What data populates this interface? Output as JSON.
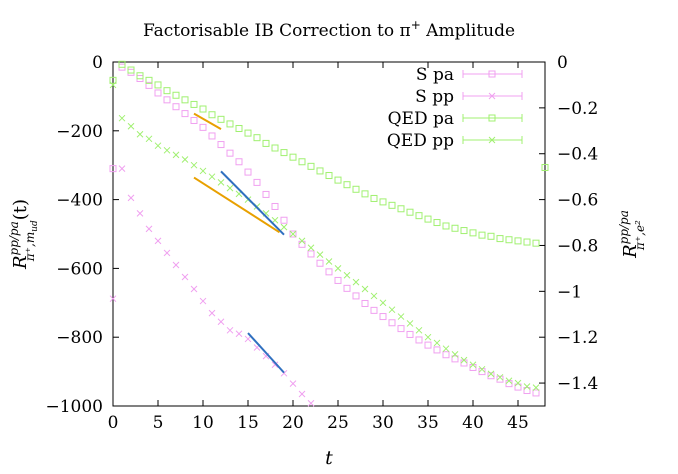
{
  "chart_data": {
    "type": "scatter",
    "title": "Factorisable IB Correction to π⁺ Amplitude",
    "title_parts": {
      "main": "Factorisable IB Correction to π",
      "sup": "+",
      "tail": " Amplitude"
    },
    "xlabel": "t",
    "ylabel": {
      "base": "R",
      "sup": "pp/pa",
      "sub": "π⁺,m",
      "subsub": "ud",
      "tail": "(t)"
    },
    "y2label": {
      "base": "R",
      "sup": "pp/pa",
      "sub": "π⁺,e²"
    },
    "xlim": [
      0,
      48
    ],
    "ylim": [
      -1000,
      0
    ],
    "y2lim": [
      -1.5,
      0
    ],
    "x_ticks": [
      0,
      5,
      10,
      15,
      20,
      25,
      30,
      35,
      40,
      45
    ],
    "y_ticks": [
      0,
      -200,
      -400,
      -600,
      -800,
      -1000
    ],
    "y_tick_labels": [
      "0",
      "−200",
      "−400",
      "−600",
      "−800",
      "−1000"
    ],
    "y2_ticks": [
      0,
      -0.2,
      -0.4,
      -0.6,
      -0.8,
      -1,
      -1.2,
      -1.4
    ],
    "y2_tick_labels": [
      "0",
      "−0.2",
      "−0.4",
      "−0.6",
      "−0.8",
      "−1",
      "−1.2",
      "−1.4"
    ],
    "legend_position": "top-right",
    "series": [
      {
        "name": "S pa",
        "marker": "square",
        "color": "#f0a0f0",
        "axis": "left",
        "x": [
          0,
          1,
          2,
          3,
          4,
          5,
          6,
          7,
          8,
          9,
          10,
          11,
          12,
          13,
          14,
          15,
          16,
          17,
          18,
          19,
          20,
          21,
          22,
          23,
          24,
          25,
          26,
          27,
          28,
          29,
          30,
          31,
          32,
          33,
          34,
          35,
          36,
          37,
          38,
          39,
          40,
          41,
          42,
          43,
          44,
          45,
          46,
          47
        ],
        "y": [
          -310,
          -15,
          -30,
          -48,
          -68,
          -90,
          -110,
          -130,
          -150,
          -170,
          -190,
          -215,
          -240,
          -265,
          -290,
          -320,
          -350,
          -385,
          -420,
          -460,
          -500,
          -530,
          -558,
          -585,
          -610,
          -635,
          -658,
          -680,
          -702,
          -722,
          -740,
          -758,
          -775,
          -792,
          -808,
          -823,
          -837,
          -851,
          -863,
          -875,
          -888,
          -900,
          -912,
          -922,
          -935,
          -945,
          -955,
          -962
        ]
      },
      {
        "name": "S pp",
        "marker": "cross",
        "color": "#f0a0f0",
        "axis": "left",
        "x": [
          0,
          1,
          2,
          3,
          4,
          5,
          6,
          7,
          8,
          9,
          10,
          11,
          12,
          13,
          14,
          15,
          16,
          17,
          18,
          19,
          20,
          21,
          22
        ],
        "y": [
          -688,
          -310,
          -395,
          -440,
          -485,
          -520,
          -555,
          -590,
          -625,
          -660,
          -695,
          -730,
          -755,
          -780,
          -790,
          -805,
          -830,
          -855,
          -880,
          -905,
          -935,
          -965,
          -992
        ]
      },
      {
        "name": "QED pa",
        "marker": "square",
        "color": "#a0f070",
        "axis": "right",
        "x": [
          0,
          1,
          2,
          3,
          4,
          5,
          6,
          7,
          8,
          9,
          10,
          11,
          12,
          13,
          14,
          15,
          16,
          17,
          18,
          19,
          20,
          21,
          22,
          23,
          24,
          25,
          26,
          27,
          28,
          29,
          30,
          31,
          32,
          33,
          34,
          35,
          36,
          37,
          38,
          39,
          40,
          41,
          42,
          43,
          44,
          45,
          46,
          47,
          48
        ],
        "y": [
          -0.08,
          -0.01,
          -0.035,
          -0.06,
          -0.08,
          -0.1,
          -0.125,
          -0.145,
          -0.165,
          -0.185,
          -0.205,
          -0.23,
          -0.25,
          -0.27,
          -0.29,
          -0.31,
          -0.33,
          -0.355,
          -0.375,
          -0.395,
          -0.415,
          -0.435,
          -0.455,
          -0.475,
          -0.495,
          -0.515,
          -0.535,
          -0.555,
          -0.575,
          -0.595,
          -0.61,
          -0.625,
          -0.64,
          -0.655,
          -0.67,
          -0.685,
          -0.7,
          -0.715,
          -0.725,
          -0.735,
          -0.745,
          -0.755,
          -0.76,
          -0.77,
          -0.775,
          -0.78,
          -0.785,
          -0.79,
          -0.46
        ]
      },
      {
        "name": "QED pp",
        "marker": "cross",
        "color": "#a0f070",
        "axis": "right",
        "x": [
          0,
          1,
          2,
          3,
          4,
          5,
          6,
          7,
          8,
          9,
          10,
          11,
          12,
          13,
          14,
          15,
          16,
          17,
          18,
          19,
          20,
          21,
          22,
          23,
          24,
          25,
          26,
          27,
          28,
          29,
          30,
          31,
          32,
          33,
          34,
          35,
          36,
          37,
          38,
          39,
          40,
          41,
          42,
          43,
          44,
          45,
          46,
          47
        ],
        "y": [
          -0.1,
          -0.245,
          -0.28,
          -0.315,
          -0.335,
          -0.365,
          -0.385,
          -0.405,
          -0.425,
          -0.45,
          -0.475,
          -0.5,
          -0.525,
          -0.55,
          -0.575,
          -0.6,
          -0.63,
          -0.66,
          -0.69,
          -0.72,
          -0.75,
          -0.78,
          -0.81,
          -0.84,
          -0.87,
          -0.9,
          -0.93,
          -0.96,
          -0.99,
          -1.02,
          -1.05,
          -1.08,
          -1.11,
          -1.14,
          -1.17,
          -1.2,
          -1.225,
          -1.25,
          -1.275,
          -1.3,
          -1.32,
          -1.34,
          -1.36,
          -1.375,
          -1.39,
          -1.4,
          -1.415,
          -1.42
        ]
      }
    ],
    "fit_lines": [
      {
        "name": "fit-orange-top",
        "color": "#e8a000",
        "axis": "left",
        "x": [
          9,
          12
        ],
        "y": [
          -150,
          -195
        ]
      },
      {
        "name": "fit-blue-upper",
        "color": "#3070c0",
        "axis": "left",
        "x": [
          12,
          19
        ],
        "y": [
          -318,
          -502
        ]
      },
      {
        "name": "fit-orange-mid",
        "color": "#e8a000",
        "axis": "left",
        "x": [
          9,
          18.5
        ],
        "y": [
          -336,
          -495
        ]
      },
      {
        "name": "fit-blue-lower",
        "color": "#3070c0",
        "axis": "left",
        "x": [
          15,
          19
        ],
        "y": [
          -788,
          -903
        ]
      }
    ]
  }
}
